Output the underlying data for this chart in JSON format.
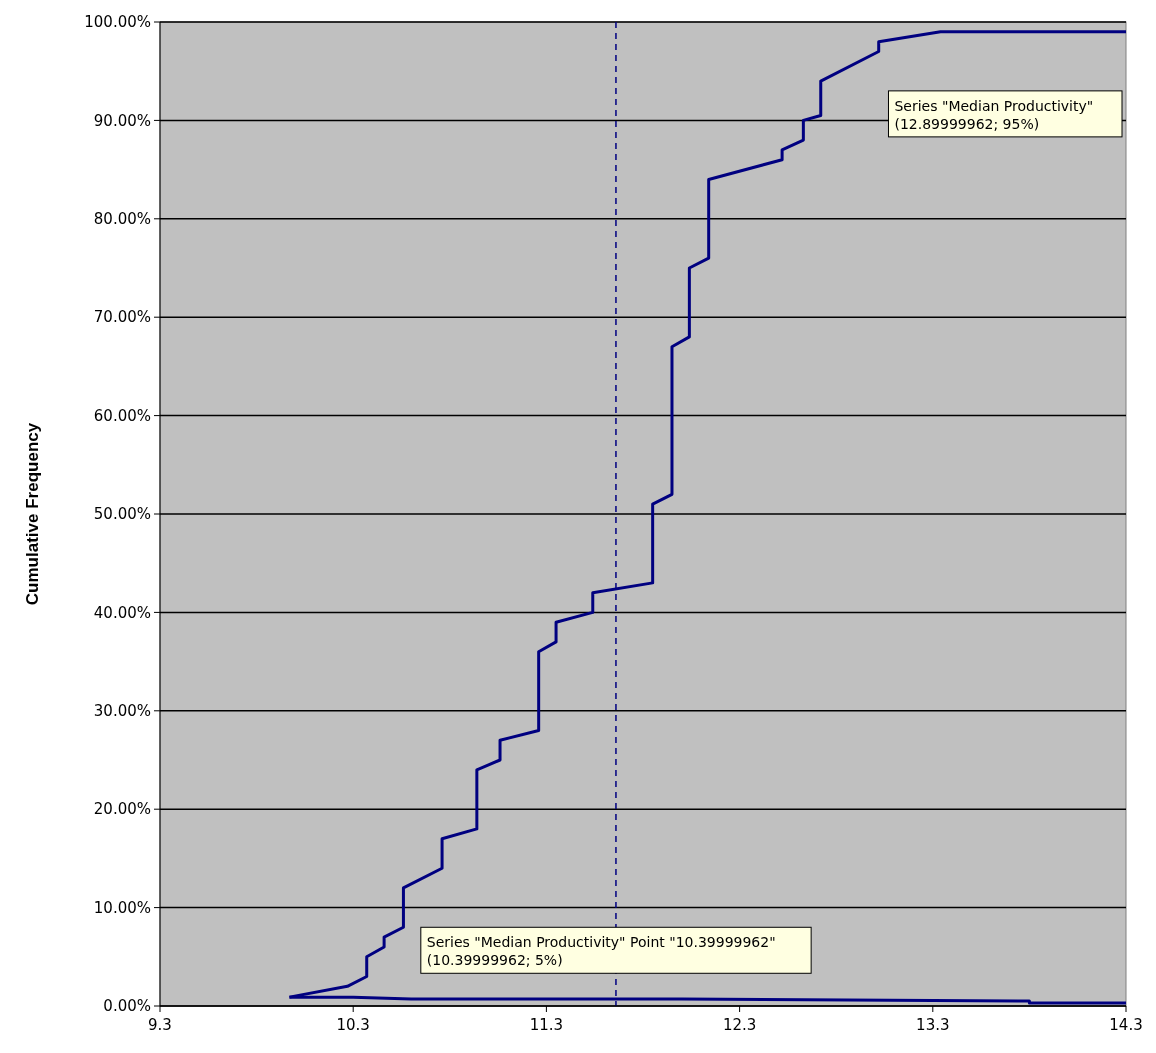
{
  "chart_data": {
    "type": "line",
    "ylabel": "Cumulative Frequency",
    "xlim": [
      9.3,
      14.3
    ],
    "xticks": [
      9.3,
      10.3,
      11.3,
      12.3,
      13.3,
      14.3
    ],
    "ylim": [
      0,
      100
    ],
    "yticks": [
      {
        "value": 0,
        "label": "0.00%"
      },
      {
        "value": 10,
        "label": "10.00%"
      },
      {
        "value": 20,
        "label": "20.00%"
      },
      {
        "value": 30,
        "label": "30.00%"
      },
      {
        "value": 40,
        "label": "40.00%"
      },
      {
        "value": 50,
        "label": "50.00%"
      },
      {
        "value": 60,
        "label": "60.00%"
      },
      {
        "value": 70,
        "label": "70.00%"
      },
      {
        "value": 80,
        "label": "80.00%"
      },
      {
        "value": 90,
        "label": "90.00%"
      },
      {
        "value": 100,
        "label": "100.00%"
      }
    ],
    "grid": "y",
    "line_style": "solid",
    "series": [
      {
        "color": "#000080",
        "x": [
          9.97,
          10.27,
          10.37,
          10.37,
          10.46,
          10.46,
          10.56,
          10.56,
          10.76,
          10.76,
          10.94,
          10.94,
          11.06,
          11.06,
          11.26,
          11.26,
          11.35,
          11.35,
          11.54,
          11.54,
          11.85,
          11.85,
          11.95,
          11.95,
          12.04,
          12.04,
          12.14,
          12.14,
          12.52,
          12.52,
          12.63,
          12.63,
          12.72,
          12.72,
          13.02,
          13.02,
          13.34,
          14.3
        ],
        "values": [
          0.9,
          2,
          3,
          5,
          6,
          7,
          8,
          12,
          14,
          17,
          18,
          24,
          25,
          27,
          28,
          36,
          37,
          39,
          40,
          42,
          43,
          51,
          52,
          67,
          68,
          75,
          76,
          84,
          86,
          87,
          88,
          90,
          90.5,
          94,
          97,
          98,
          99,
          99
        ]
      },
      {
        "color": "#000080",
        "x": [
          9.97,
          10.3,
          10.6,
          12.0,
          13.8,
          13.8,
          14.3
        ],
        "values": [
          0.9,
          0.9,
          0.7,
          0.7,
          0.5,
          0.3,
          0.3
        ]
      }
    ],
    "ref_lines": [
      {
        "axis": "x",
        "value": 11.66,
        "color": "#000080",
        "line_style": "dashed"
      }
    ],
    "annotations": [
      "Series \"Median Productivity\"\n(12.89999962; 95%)",
      "Series \"Median Productivity\" Point \"10.39999962\"\n(10.39999962; 5%)"
    ]
  }
}
